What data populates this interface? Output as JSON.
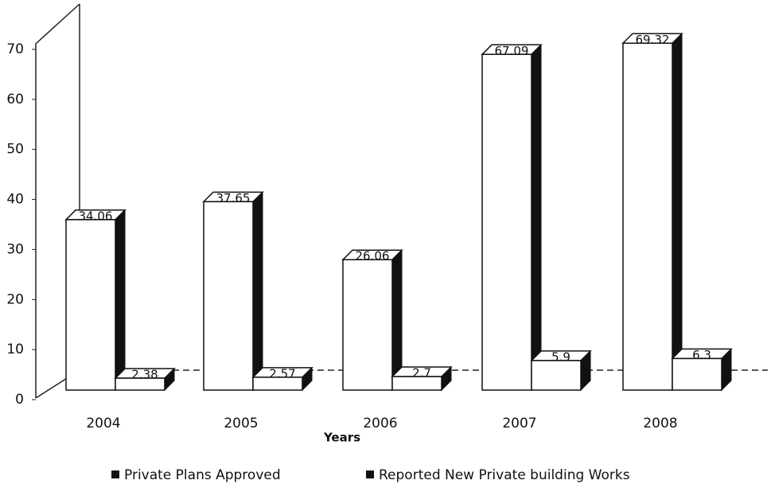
{
  "chart_data": {
    "type": "bar3d",
    "x_label": "Years",
    "categories": [
      "2004",
      "2005",
      "2006",
      "2007",
      "2008"
    ],
    "series": [
      {
        "name": "Private Plans Approved",
        "color": "#ffffff",
        "values": [
          34.06,
          37.65,
          26.06,
          67.09,
          69.32
        ]
      },
      {
        "name": "Reported New Private building Works",
        "color": "#ffffff",
        "values": [
          2.38,
          2.57,
          2.7,
          5.9,
          6.3
        ]
      }
    ],
    "ylim": [
      0,
      70
    ],
    "yticks": [
      0,
      10,
      20,
      30,
      40,
      50,
      60,
      70
    ],
    "legend": "bottom"
  }
}
